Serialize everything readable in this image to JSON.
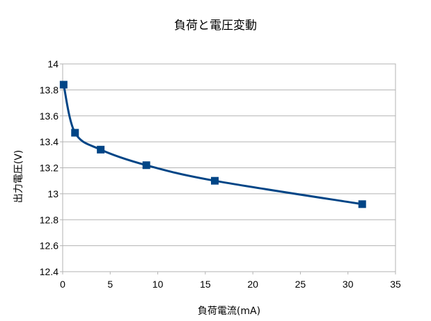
{
  "chart_data": {
    "type": "line",
    "title": "負荷と電圧変動",
    "xlabel": "負荷電流(mA)",
    "ylabel": "出力電圧(V)",
    "xlim": [
      0,
      35
    ],
    "ylim": [
      12.4,
      14
    ],
    "x_ticks": [
      "0",
      "5",
      "10",
      "15",
      "20",
      "25",
      "30",
      "35"
    ],
    "y_ticks": [
      "12.4",
      "12.6",
      "12.8",
      "13",
      "13.2",
      "13.4",
      "13.6",
      "13.8",
      "14"
    ],
    "grid": true,
    "legend": "none",
    "series": [
      {
        "color": "#004586",
        "marker": "square",
        "x": [
          0.1,
          1.3,
          4.0,
          8.8,
          16.0,
          31.5
        ],
        "y": [
          13.84,
          13.47,
          13.34,
          13.22,
          13.1,
          12.92
        ]
      }
    ]
  }
}
